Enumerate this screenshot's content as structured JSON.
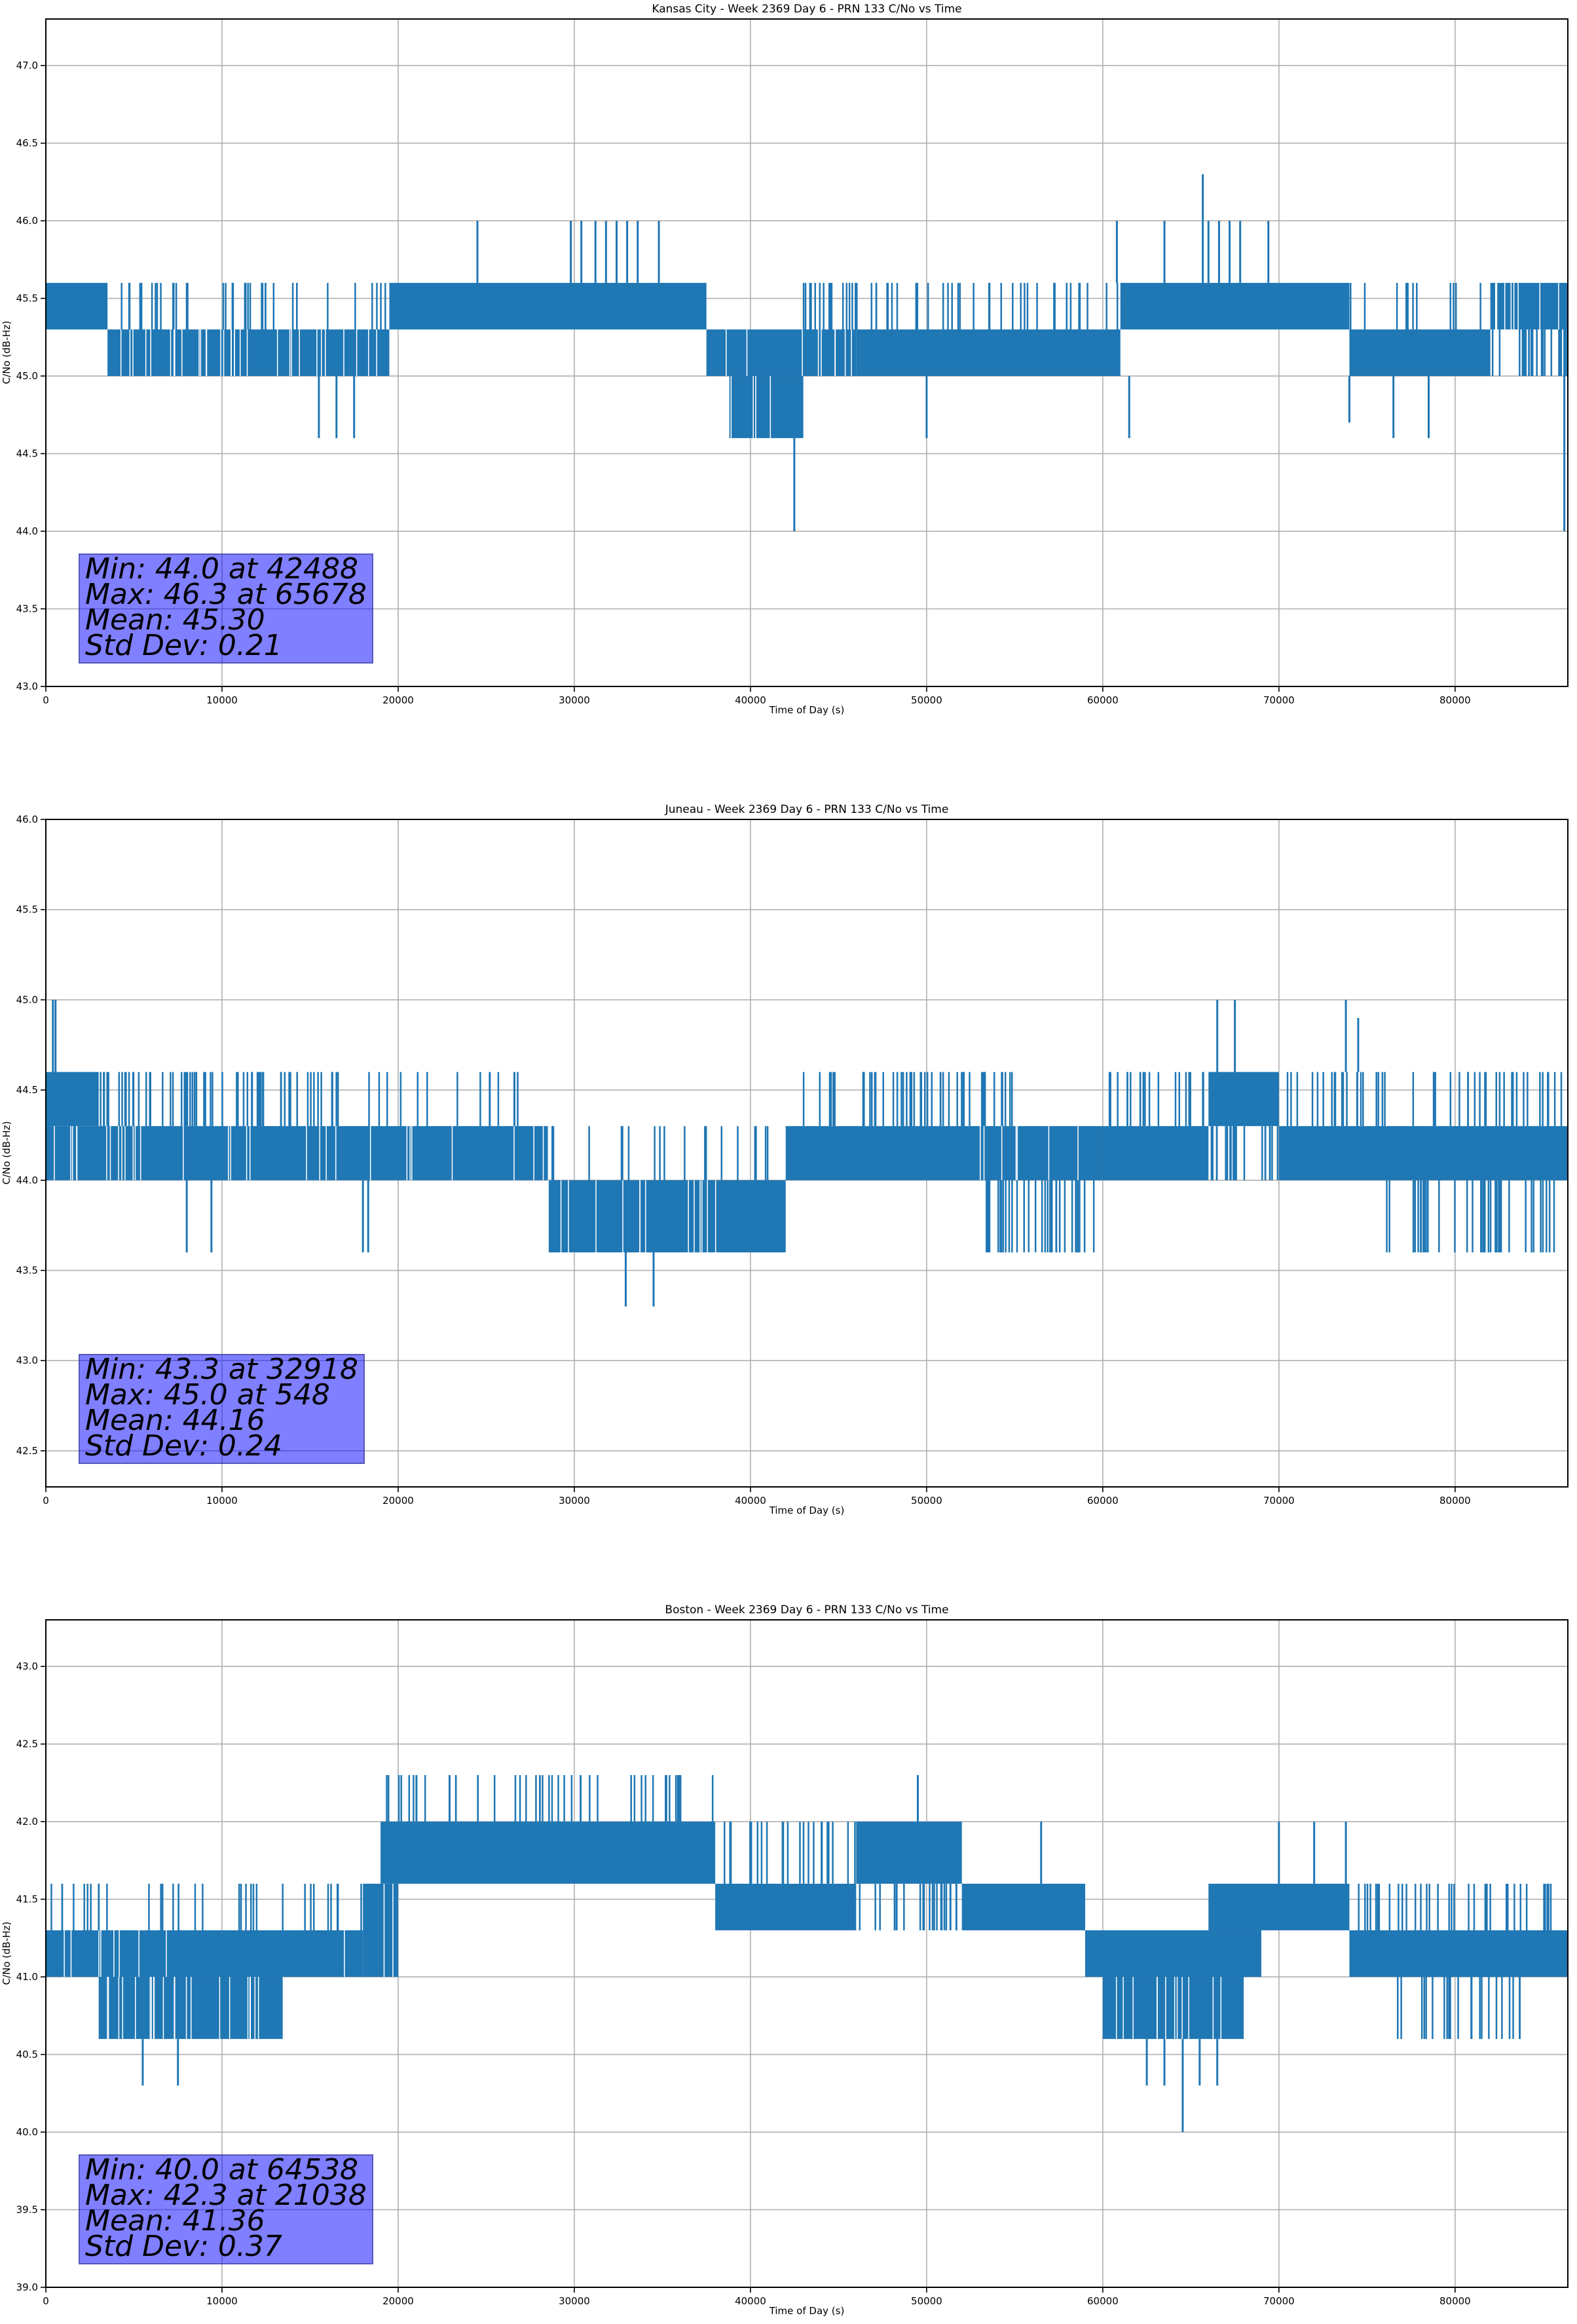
{
  "chart_data": [
    {
      "type": "line",
      "title": "Kansas City - Week 2369 Day 6 - PRN 133 C/No vs Time",
      "xlabel": "Time of Day (s)",
      "ylabel": "C/No (dB-Hz)",
      "xlim": [
        0,
        86400
      ],
      "ylim": [
        43.0,
        47.3
      ],
      "xticks": [
        "0",
        "10000",
        "20000",
        "30000",
        "40000",
        "50000",
        "60000",
        "70000",
        "80000"
      ],
      "yticks": [
        "43.0",
        "43.5",
        "44.0",
        "44.5",
        "45.0",
        "45.5",
        "46.0",
        "46.5",
        "47.0"
      ],
      "grid": true,
      "color": "#1f77b4",
      "stats": {
        "min": "Min: 44.0 at 42488",
        "max": "Max: 46.3 at 65678",
        "mean": "Mean: 45.30",
        "std": "Std Dev: 0.21"
      },
      "bands": [
        [
          0,
          3500,
          45.3,
          45.6,
          1
        ],
        [
          3500,
          19500,
          45.3,
          45.6,
          0.25
        ],
        [
          3500,
          19500,
          45.0,
          45.3,
          0.8
        ],
        [
          19500,
          37500,
          45.3,
          45.6,
          1
        ],
        [
          37500,
          46000,
          45.0,
          45.3,
          0.9
        ],
        [
          38800,
          43000,
          44.6,
          45.0,
          0.9
        ],
        [
          43000,
          61000,
          45.3,
          45.6,
          0.3
        ],
        [
          46000,
          61000,
          45.0,
          45.3,
          1
        ],
        [
          61000,
          74000,
          45.3,
          45.6,
          1
        ],
        [
          74000,
          82000,
          45.0,
          45.3,
          1
        ],
        [
          74000,
          82000,
          45.3,
          45.6,
          0.15
        ],
        [
          82000,
          86400,
          45.3,
          45.6,
          0.8
        ],
        [
          82000,
          86400,
          45.0,
          45.3,
          0.6
        ]
      ],
      "spikes": [
        [
          24500,
          45.6,
          46.0
        ],
        [
          29800,
          45.6,
          46.0
        ],
        [
          30400,
          45.6,
          46.0
        ],
        [
          31200,
          45.6,
          46.0
        ],
        [
          31800,
          45.6,
          46.0
        ],
        [
          32400,
          45.6,
          46.0
        ],
        [
          33000,
          45.6,
          46.0
        ],
        [
          33600,
          45.6,
          46.0
        ],
        [
          34800,
          45.6,
          46.0
        ],
        [
          15500,
          44.6,
          45.0
        ],
        [
          16500,
          44.6,
          45.0
        ],
        [
          17500,
          44.6,
          45.0
        ],
        [
          42488,
          44.0,
          44.6
        ],
        [
          50000,
          44.6,
          45.0
        ],
        [
          61500,
          44.6,
          45.0
        ],
        [
          60800,
          45.6,
          46.0
        ],
        [
          63500,
          45.6,
          46.0
        ],
        [
          65678,
          45.6,
          46.3
        ],
        [
          66000,
          45.6,
          46.0
        ],
        [
          66600,
          45.6,
          46.0
        ],
        [
          67200,
          45.6,
          46.0
        ],
        [
          67800,
          45.6,
          46.0
        ],
        [
          69400,
          45.6,
          46.0
        ],
        [
          74000,
          44.7,
          45.0
        ],
        [
          76500,
          44.6,
          45.0
        ],
        [
          78500,
          44.6,
          45.0
        ],
        [
          86200,
          44.0,
          45.3
        ]
      ]
    },
    {
      "type": "line",
      "title": "Juneau - Week 2369 Day 6 - PRN 133 C/No vs Time",
      "xlabel": "Time of Day (s)",
      "ylabel": "C/No (dB-Hz)",
      "xlim": [
        0,
        86400
      ],
      "ylim": [
        42.3,
        46.0
      ],
      "xticks": [
        "0",
        "10000",
        "20000",
        "30000",
        "40000",
        "50000",
        "60000",
        "70000",
        "80000"
      ],
      "yticks": [
        "42.5",
        "43.0",
        "43.5",
        "44.0",
        "44.5",
        "45.0",
        "45.5",
        "46.0"
      ],
      "grid": true,
      "color": "#1f77b4",
      "stats": {
        "min": "Min: 43.3 at 32918",
        "max": "Max: 45.0 at 548",
        "mean": "Mean: 44.16",
        "std": "Std Dev: 0.24"
      },
      "bands": [
        [
          0,
          3000,
          44.3,
          44.6,
          1
        ],
        [
          3000,
          16500,
          44.3,
          44.6,
          0.5
        ],
        [
          0,
          28500,
          44.0,
          44.3,
          0.9
        ],
        [
          16500,
          28500,
          44.3,
          44.6,
          0.1
        ],
        [
          28500,
          42000,
          43.6,
          44.0,
          0.9
        ],
        [
          28500,
          42000,
          44.0,
          44.3,
          0.15
        ],
        [
          42000,
          53000,
          44.0,
          44.3,
          1
        ],
        [
          43000,
          55000,
          44.3,
          44.6,
          0.45
        ],
        [
          53000,
          60000,
          44.0,
          44.3,
          0.9
        ],
        [
          53000,
          60000,
          43.6,
          44.0,
          0.5
        ],
        [
          60000,
          66000,
          44.0,
          44.3,
          1
        ],
        [
          60000,
          66000,
          44.3,
          44.6,
          0.35
        ],
        [
          66000,
          70000,
          44.3,
          44.6,
          1
        ],
        [
          66000,
          70000,
          44.0,
          44.3,
          0.6
        ],
        [
          70000,
          86400,
          44.0,
          44.3,
          1
        ],
        [
          76000,
          86000,
          43.6,
          44.0,
          0.4
        ],
        [
          70000,
          86400,
          44.3,
          44.6,
          0.3
        ]
      ],
      "spikes": [
        [
          548,
          44.6,
          45.0
        ],
        [
          400,
          44.6,
          45.0
        ],
        [
          8000,
          43.6,
          44.0
        ],
        [
          9400,
          43.6,
          44.0
        ],
        [
          18000,
          43.6,
          44.0
        ],
        [
          18300,
          43.6,
          44.0
        ],
        [
          32918,
          43.3,
          43.6
        ],
        [
          34500,
          43.3,
          43.6
        ],
        [
          66500,
          44.6,
          45.0
        ],
        [
          67500,
          44.6,
          45.0
        ],
        [
          73800,
          44.6,
          45.0
        ],
        [
          74500,
          44.6,
          44.9
        ],
        [
          25200,
          44.3,
          44.6
        ],
        [
          26600,
          44.3,
          44.6
        ]
      ]
    },
    {
      "type": "line",
      "title": "Boston - Week 2369 Day 6 - PRN 133 C/No vs Time",
      "xlabel": "Time of Day (s)",
      "ylabel": "C/No (dB-Hz)",
      "xlim": [
        0,
        86400
      ],
      "ylim": [
        39.0,
        43.3
      ],
      "xticks": [
        "0",
        "10000",
        "20000",
        "30000",
        "40000",
        "50000",
        "60000",
        "70000",
        "80000"
      ],
      "yticks": [
        "39.0",
        "39.5",
        "40.0",
        "40.5",
        "41.0",
        "41.5",
        "42.0",
        "42.5",
        "43.0"
      ],
      "grid": true,
      "color": "#1f77b4",
      "stats": {
        "min": "Min: 40.0 at 64538",
        "max": "Max: 42.3 at 21038",
        "mean": "Mean: 41.36",
        "std": "Std Dev: 0.37"
      },
      "bands": [
        [
          0,
          18000,
          41.0,
          41.3,
          0.95
        ],
        [
          3000,
          13500,
          40.6,
          41.0,
          0.8
        ],
        [
          0,
          18000,
          41.3,
          41.6,
          0.2
        ],
        [
          18000,
          20000,
          41.0,
          41.6,
          0.9
        ],
        [
          19000,
          38000,
          41.6,
          42.0,
          1
        ],
        [
          19000,
          38000,
          42.0,
          42.3,
          0.25
        ],
        [
          38000,
          46000,
          41.3,
          41.6,
          1
        ],
        [
          38000,
          46000,
          41.6,
          42.0,
          0.3
        ],
        [
          46000,
          52000,
          41.6,
          42.0,
          1
        ],
        [
          46000,
          52000,
          41.3,
          41.6,
          0.4
        ],
        [
          52000,
          59000,
          41.3,
          41.6,
          1
        ],
        [
          59000,
          69000,
          41.0,
          41.3,
          1
        ],
        [
          60000,
          68000,
          40.6,
          41.0,
          0.85
        ],
        [
          66000,
          74000,
          41.3,
          41.6,
          1
        ],
        [
          74000,
          86400,
          41.0,
          41.3,
          1
        ],
        [
          74000,
          86400,
          41.3,
          41.6,
          0.3
        ],
        [
          76000,
          84000,
          40.6,
          41.0,
          0.3
        ]
      ],
      "spikes": [
        [
          5500,
          40.3,
          40.6
        ],
        [
          7500,
          40.3,
          40.6
        ],
        [
          21038,
          42.0,
          42.3
        ],
        [
          49500,
          42.0,
          42.3
        ],
        [
          62500,
          40.3,
          40.6
        ],
        [
          63500,
          40.3,
          40.6
        ],
        [
          64538,
          40.0,
          40.6
        ],
        [
          65500,
          40.3,
          40.6
        ],
        [
          66500,
          40.3,
          40.6
        ],
        [
          70000,
          41.6,
          42.0
        ],
        [
          72000,
          41.6,
          42.0
        ],
        [
          73800,
          41.6,
          42.0
        ],
        [
          56500,
          41.6,
          42.0
        ]
      ]
    }
  ]
}
